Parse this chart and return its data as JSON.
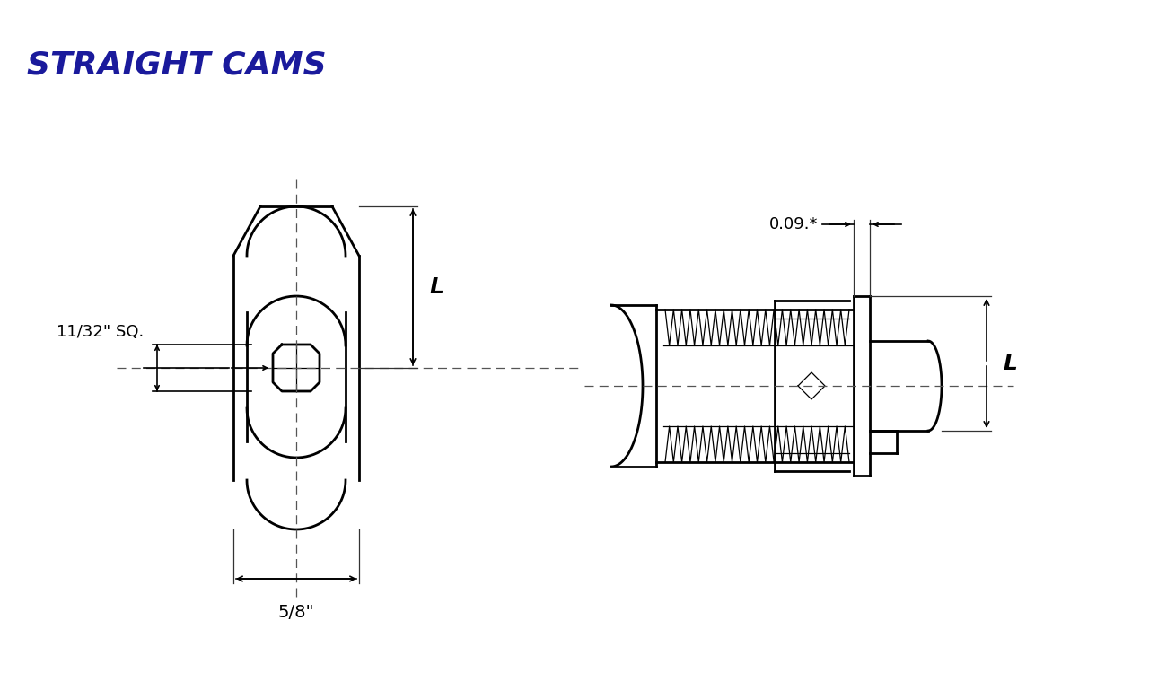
{
  "title": "STRAIGHT CAMS",
  "title_color": "#1a1a9c",
  "bg_color": "#ffffff",
  "line_color": "#000000",
  "label_11_32": "11/32\" SQ.",
  "label_5_8": "5/8\"",
  "label_L": "L",
  "label_009": "0.09.*",
  "figsize": [
    12.8,
    7.79
  ],
  "dpi": 100
}
